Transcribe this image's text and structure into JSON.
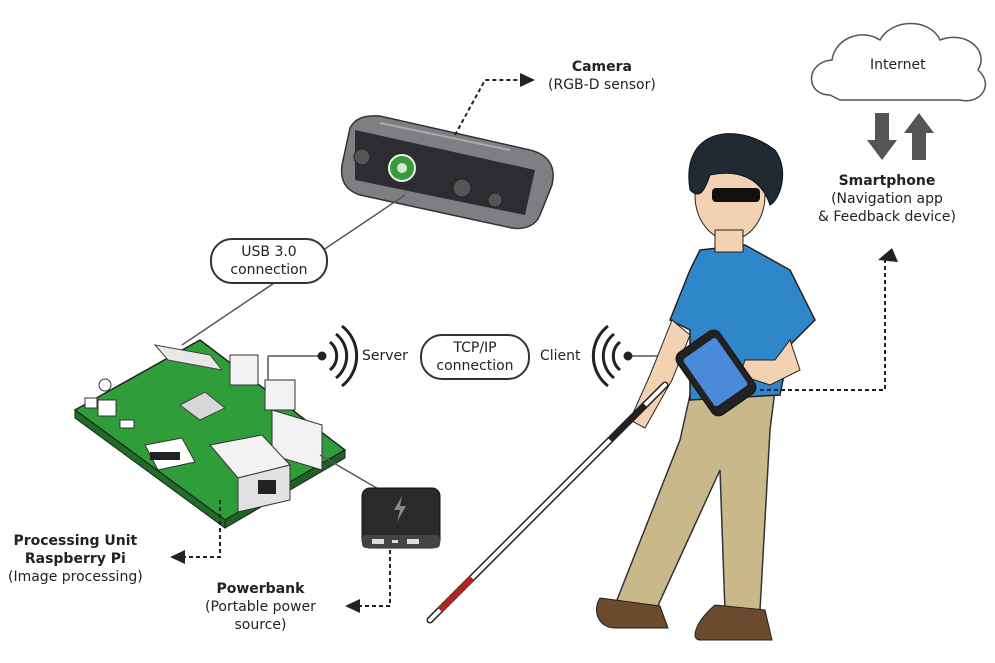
{
  "camera": {
    "title": "Camera",
    "subtitle": "(RGB-D sensor)"
  },
  "usb_label": {
    "line1": "USB 3.0",
    "line2": "connection"
  },
  "tcp_label": {
    "line1": "TCP/IP",
    "line2": "connection"
  },
  "server_label": "Server",
  "client_label": "Client",
  "internet_label": "Internet",
  "smartphone": {
    "title": "Smartphone",
    "line1": "(Navigation app",
    "line2": "& Feedback device)"
  },
  "processing": {
    "title1": "Processing Unit",
    "title2": "Raspberry Pi",
    "subtitle": "(Image processing)"
  },
  "powerbank": {
    "title": "Powerbank",
    "line1": "(Portable power",
    "line2": "source)"
  },
  "colors": {
    "board": "#2f9e3a",
    "shirt": "#2f86c9",
    "pants": "#c9b98a",
    "cane_tip": "#b52020"
  }
}
